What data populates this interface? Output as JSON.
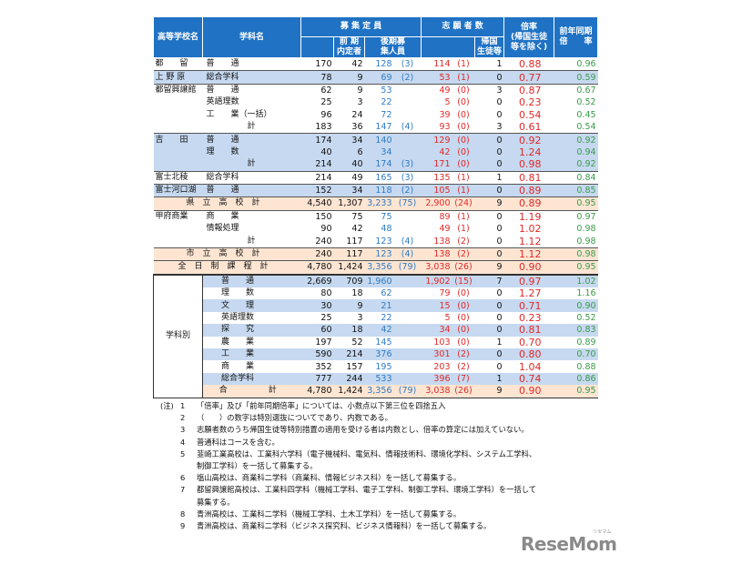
{
  "header": {
    "school": "高等学校名",
    "dept": "学科名",
    "capacity": "募 集 定 員",
    "early": "前 期\n内定者",
    "later": "後期募\n集人員",
    "applicants": "志 願 者 数",
    "returnee": "帰国\n生徒等",
    "ratio": "倍率\n(帰国生徒\n等を除く)",
    "prev": "前年同期\n倍　　率"
  },
  "rows": [
    {
      "school": "都　　留",
      "dept": "普　　通",
      "cap": "170",
      "early": "42",
      "later": "128",
      "later_sp": "(3)",
      "app": "114",
      "app_sp": "(1)",
      "ret": "1",
      "ratio": "0.88",
      "prev": "0.96",
      "style": ""
    },
    {
      "school": "上 野 原",
      "dept": "総合学科",
      "cap": "78",
      "early": "9",
      "later": "69",
      "later_sp": "(2)",
      "app": "53",
      "app_sp": "(1)",
      "ret": "0",
      "ratio": "0.77",
      "prev": "0.59",
      "style": "b"
    },
    {
      "school": "都留興譲館",
      "dept": "普　　通",
      "cap": "62",
      "early": "9",
      "later": "53",
      "later_sp": "",
      "app": "49",
      "app_sp": "(0)",
      "ret": "3",
      "ratio": "0.87",
      "prev": "0.67",
      "style": ""
    },
    {
      "school": "",
      "dept": "英語理数",
      "cap": "25",
      "early": "3",
      "later": "22",
      "later_sp": "",
      "app": "5",
      "app_sp": "(0)",
      "ret": "0",
      "ratio": "0.23",
      "prev": "0.52",
      "style": ""
    },
    {
      "school": "",
      "dept": "工　　業（一括）",
      "cap": "96",
      "early": "24",
      "later": "72",
      "later_sp": "",
      "app": "39",
      "app_sp": "(0)",
      "ret": "0",
      "ratio": "0.54",
      "prev": "0.45",
      "style": ""
    },
    {
      "school": "",
      "subtotal": "計",
      "cap": "183",
      "early": "36",
      "later": "147",
      "later_sp": "(4)",
      "app": "93",
      "app_sp": "(0)",
      "ret": "3",
      "ratio": "0.61",
      "prev": "0.54",
      "style": ""
    },
    {
      "school": "吉　　田",
      "dept": "普　　通",
      "cap": "174",
      "early": "34",
      "later": "140",
      "later_sp": "",
      "app": "129",
      "app_sp": "(0)",
      "ret": "0",
      "ratio": "0.92",
      "prev": "0.92",
      "style": "b"
    },
    {
      "school": "",
      "dept": "理　　数",
      "cap": "40",
      "early": "6",
      "later": "34",
      "later_sp": "",
      "app": "42",
      "app_sp": "(0)",
      "ret": "0",
      "ratio": "1.24",
      "prev": "0.94",
      "style": "b"
    },
    {
      "school": "",
      "subtotal": "計",
      "cap": "214",
      "early": "40",
      "later": "174",
      "later_sp": "(3)",
      "app": "171",
      "app_sp": "(0)",
      "ret": "0",
      "ratio": "0.98",
      "prev": "0.92",
      "style": "b"
    },
    {
      "school": "富士北稜",
      "dept": "総合学科",
      "cap": "214",
      "early": "49",
      "later": "165",
      "later_sp": "(3)",
      "app": "135",
      "app_sp": "(1)",
      "ret": "1",
      "ratio": "0.81",
      "prev": "0.84",
      "style": ""
    },
    {
      "school": "富士河口湖",
      "dept": "普　　通",
      "cap": "152",
      "early": "34",
      "later": "118",
      "later_sp": "(2)",
      "app": "105",
      "app_sp": "(1)",
      "ret": "0",
      "ratio": "0.89",
      "prev": "0.85",
      "style": "b"
    },
    {
      "total": "県立高校計",
      "cap": "4,540",
      "early": "1,307",
      "later": "3,233",
      "later_sp": "(75)",
      "app": "2,900",
      "app_sp": "(24)",
      "ret": "9",
      "ratio": "0.89",
      "prev": "0.95",
      "style": "t"
    },
    {
      "school": "甲府商業",
      "dept": "商　　業",
      "cap": "150",
      "early": "75",
      "later": "75",
      "later_sp": "",
      "app": "89",
      "app_sp": "(1)",
      "ret": "0",
      "ratio": "1.19",
      "prev": "0.97",
      "style": ""
    },
    {
      "school": "",
      "dept": "情報処理",
      "cap": "90",
      "early": "42",
      "later": "48",
      "later_sp": "",
      "app": "49",
      "app_sp": "(1)",
      "ret": "0",
      "ratio": "1.02",
      "prev": "0.98",
      "style": ""
    },
    {
      "school": "",
      "subtotal": "計",
      "cap": "240",
      "early": "117",
      "later": "123",
      "later_sp": "(4)",
      "app": "138",
      "app_sp": "(2)",
      "ret": "0",
      "ratio": "1.12",
      "prev": "0.98",
      "style": ""
    },
    {
      "total": "市立高校計",
      "cap": "240",
      "early": "117",
      "later": "123",
      "later_sp": "(4)",
      "app": "138",
      "app_sp": "(2)",
      "ret": "0",
      "ratio": "1.12",
      "prev": "0.98",
      "style": "t"
    },
    {
      "total": "全日制課程計",
      "cap": "4,780",
      "early": "1,424",
      "later": "3,356",
      "later_sp": "(79)",
      "app": "3,038",
      "app_sp": "(26)",
      "ret": "9",
      "ratio": "0.90",
      "prev": "0.95",
      "style": "t"
    }
  ],
  "by_dept": {
    "label": "学科別",
    "rows": [
      {
        "dept": "普　　通",
        "cap": "2,669",
        "early": "709",
        "later": "1,960",
        "later_sp": "",
        "app": "1,902",
        "app_sp": "(15)",
        "ret": "7",
        "ratio": "0.97",
        "prev": "1.02",
        "style": "b"
      },
      {
        "dept": "理　　数",
        "cap": "80",
        "early": "18",
        "later": "62",
        "later_sp": "",
        "app": "79",
        "app_sp": "(0)",
        "ret": "0",
        "ratio": "1.27",
        "prev": "1.16",
        "style": ""
      },
      {
        "dept": "文　　理",
        "cap": "30",
        "early": "9",
        "later": "21",
        "later_sp": "",
        "app": "15",
        "app_sp": "(0)",
        "ret": "0",
        "ratio": "0.71",
        "prev": "0.90",
        "style": "b"
      },
      {
        "dept": "英語理数",
        "cap": "25",
        "early": "3",
        "later": "22",
        "later_sp": "",
        "app": "5",
        "app_sp": "(0)",
        "ret": "0",
        "ratio": "0.23",
        "prev": "0.52",
        "style": ""
      },
      {
        "dept": "探　　究",
        "cap": "60",
        "early": "18",
        "later": "42",
        "later_sp": "",
        "app": "34",
        "app_sp": "(0)",
        "ret": "0",
        "ratio": "0.81",
        "prev": "0.83",
        "style": "b"
      },
      {
        "dept": "農　　業",
        "cap": "197",
        "early": "52",
        "later": "145",
        "later_sp": "",
        "app": "103",
        "app_sp": "(0)",
        "ret": "1",
        "ratio": "0.70",
        "prev": "0.89",
        "style": ""
      },
      {
        "dept": "工　　業",
        "cap": "590",
        "early": "214",
        "later": "376",
        "later_sp": "",
        "app": "301",
        "app_sp": "(2)",
        "ret": "0",
        "ratio": "0.80",
        "prev": "0.70",
        "style": "b"
      },
      {
        "dept": "商　　業",
        "cap": "352",
        "early": "157",
        "later": "195",
        "later_sp": "",
        "app": "203",
        "app_sp": "(2)",
        "ret": "0",
        "ratio": "1.04",
        "prev": "0.88",
        "style": ""
      },
      {
        "dept": "総合学科",
        "cap": "777",
        "early": "244",
        "later": "533",
        "later_sp": "",
        "app": "396",
        "app_sp": "(7)",
        "ret": "1",
        "ratio": "0.74",
        "prev": "0.86",
        "style": "b"
      },
      {
        "total": "合　　計",
        "cap": "4,780",
        "early": "1,424",
        "later": "3,356",
        "later_sp": "(79)",
        "app": "3,038",
        "app_sp": "(26)",
        "ret": "9",
        "ratio": "0.90",
        "prev": "0.95",
        "style": "t"
      }
    ]
  },
  "notes": {
    "prefix": "(注)",
    "items": [
      {
        "n": "1",
        "text": "「倍率」及び「前年同期倍率」については、小数点以下第三位を四捨五入"
      },
      {
        "n": "2",
        "text": "（　　）の数字は特別選抜についてであり、内数である。"
      },
      {
        "n": "3",
        "text": "志願者数のうち帰国生徒等特別措置の適用を受ける者は内数とし、倍率の算定には加えていない。"
      },
      {
        "n": "4",
        "text": "普通科はコースを含む。"
      },
      {
        "n": "5",
        "text": "韮崎工業高校は、工業科六学科（電子機械科、電気科、情報技術科、環境化学科、システム工学科、",
        "cont": "制御工学科）を一括して募集する。"
      },
      {
        "n": "6",
        "text": "塩山高校は、商業科二学科（商業科、情報ビジネス科）を一括して募集する。"
      },
      {
        "n": "7",
        "text": "都留興譲館高校は、工業科四学科（機械工学科、電子工学科、制御工学科、環境工学科）を一括して",
        "cont": "募集する。"
      },
      {
        "n": "8",
        "text": "青洲高校は、工業科二学科（機械工学科、土木工学科）を一括して募集する。"
      },
      {
        "n": "9",
        "text": "青洲高校は、商業科二学科（ビジネス探究科、ビジネス情報科）を一括して募集する。"
      }
    ]
  },
  "logo": {
    "text": "ReseMom",
    "ruby": "リセマム"
  },
  "colors": {
    "header_bg": "#1f72c4",
    "row_blue": "#c6d9f0",
    "row_total": "#fde5d2",
    "later_text": "#2e7bc4",
    "applicant_text": "#e02a2a",
    "prev_text": "#3a9a4a"
  }
}
